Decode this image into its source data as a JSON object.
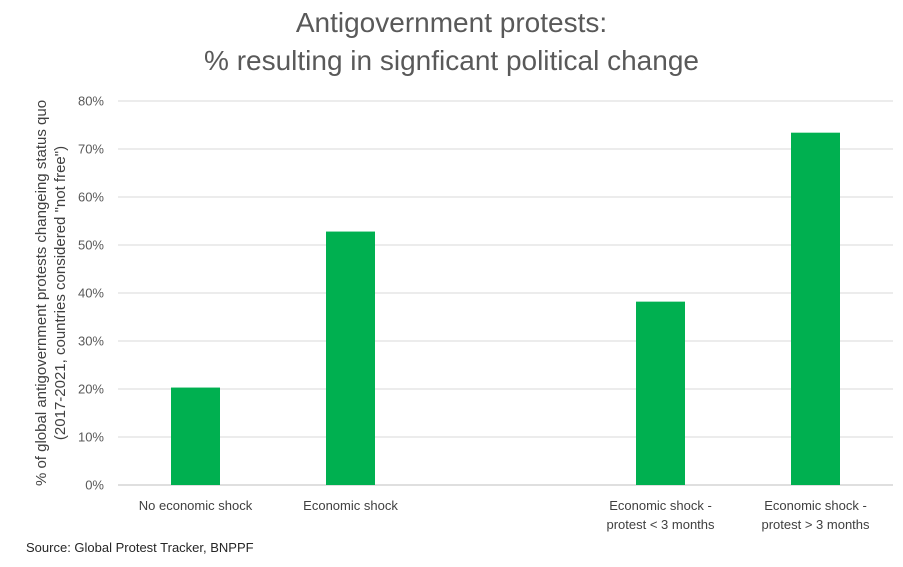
{
  "chart_data": {
    "type": "bar",
    "title_lines": [
      "Antigovernment protests:",
      "% resulting in signficant political change"
    ],
    "ylabel_lines": [
      "% of global antigovernment protests  changeing status quo",
      "(2017-2021, countries considered \"not free\")"
    ],
    "categories": [
      [
        "No economic shock"
      ],
      [
        "Economic shock"
      ],
      [
        ""
      ],
      [
        "Economic shock -",
        "protest < 3 months"
      ],
      [
        "Economic shock -",
        "protest > 3 months"
      ]
    ],
    "values": [
      20.3,
      52.8,
      null,
      38.2,
      73.4
    ],
    "ylim": [
      0,
      80
    ],
    "yticks": [
      0,
      10,
      20,
      30,
      40,
      50,
      60,
      70,
      80
    ],
    "ytick_labels": [
      "0%",
      "10%",
      "20%",
      "30%",
      "40%",
      "50%",
      "60%",
      "70%",
      "80%"
    ],
    "grid": true,
    "bar_color": "#00B050",
    "grid_color": "#D9D9D9"
  },
  "source": "Source: Global Protest Tracker, BNPPF"
}
